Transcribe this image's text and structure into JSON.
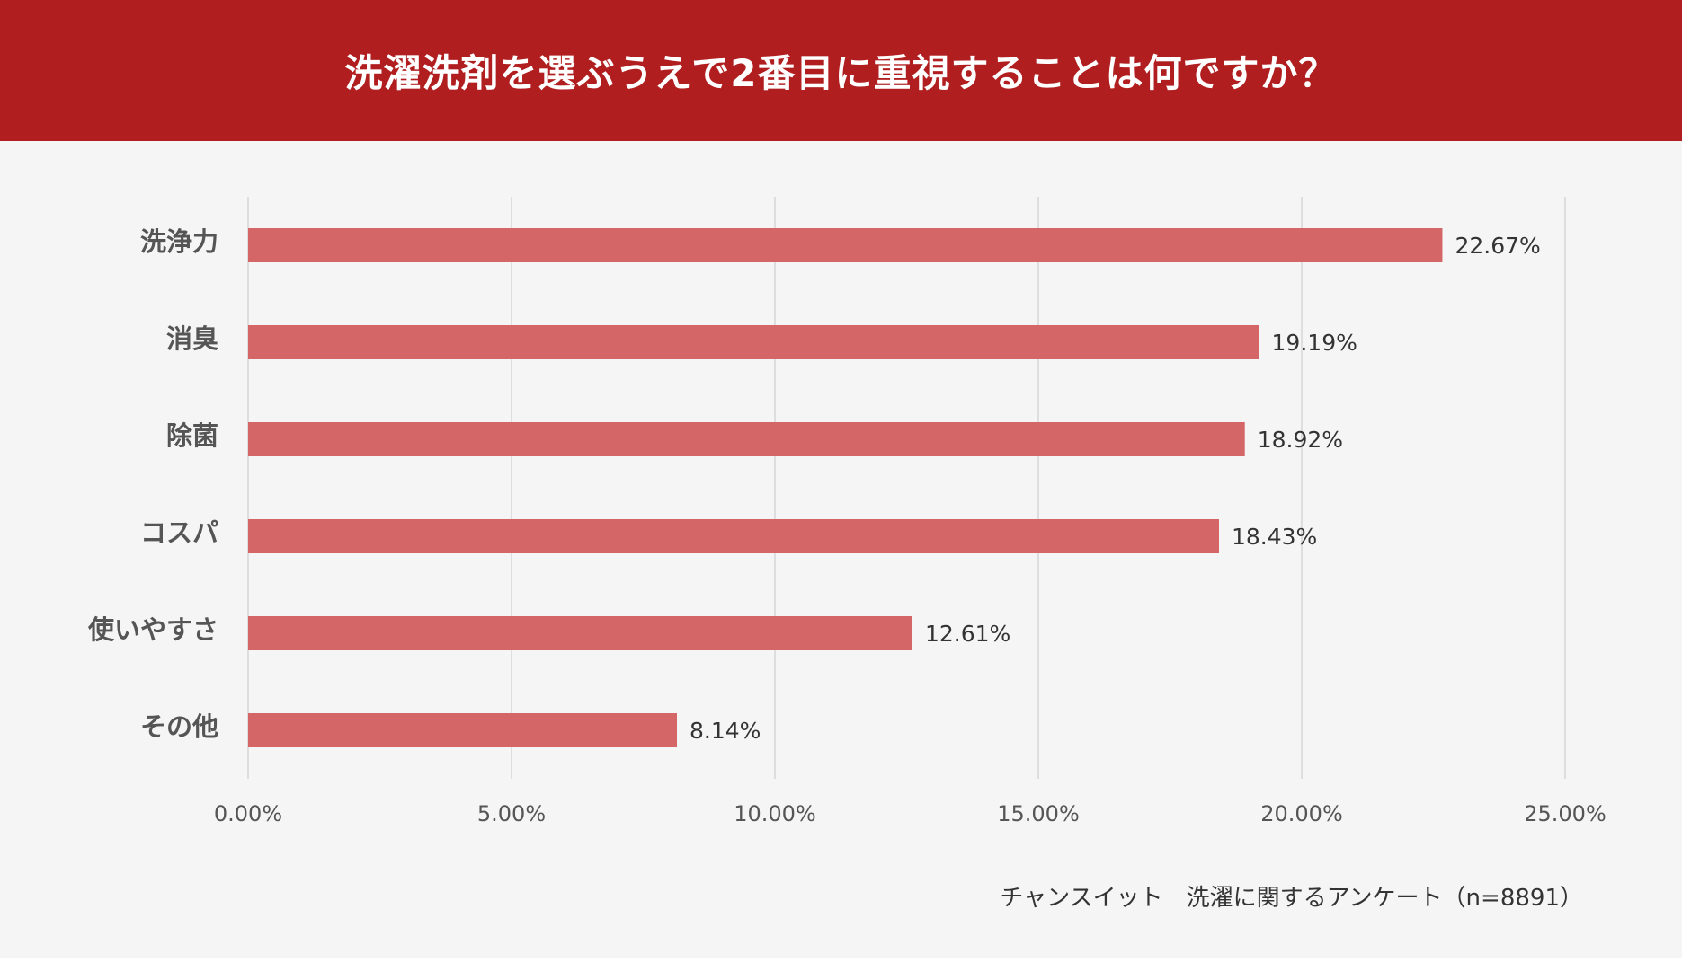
{
  "header": {
    "title": "洗濯洗剤を選ぶうえで2番目に重視することは何ですか？"
  },
  "source": {
    "text": "チャンスイット　洗濯に関するアンケート（n=8891）"
  },
  "colors": {
    "header_bg": "#b01e1f",
    "bar": "#d46667",
    "panel_bg": "#f5f5f5",
    "grid": "#d6d6d6"
  },
  "chart_data": {
    "type": "bar",
    "orientation": "horizontal",
    "title": "洗濯洗剤を選ぶうえで2番目に重視することは何ですか？",
    "categories": [
      "洗浄力",
      "消臭",
      "除菌",
      "コスパ",
      "使いやすさ",
      "その他"
    ],
    "values": [
      22.67,
      19.19,
      18.92,
      18.43,
      12.61,
      8.14
    ],
    "value_labels": [
      "22.67%",
      "19.19%",
      "18.92%",
      "18.43%",
      "12.61%",
      "8.14%"
    ],
    "xlim": [
      0,
      25
    ],
    "xticks": [
      0,
      5,
      10,
      15,
      20,
      25
    ],
    "xtick_labels": [
      "0.00%",
      "5.00%",
      "10.00%",
      "15.00%",
      "20.00%",
      "25.00%"
    ],
    "xlabel": "",
    "ylabel": "",
    "grid": true,
    "legend": "none"
  }
}
